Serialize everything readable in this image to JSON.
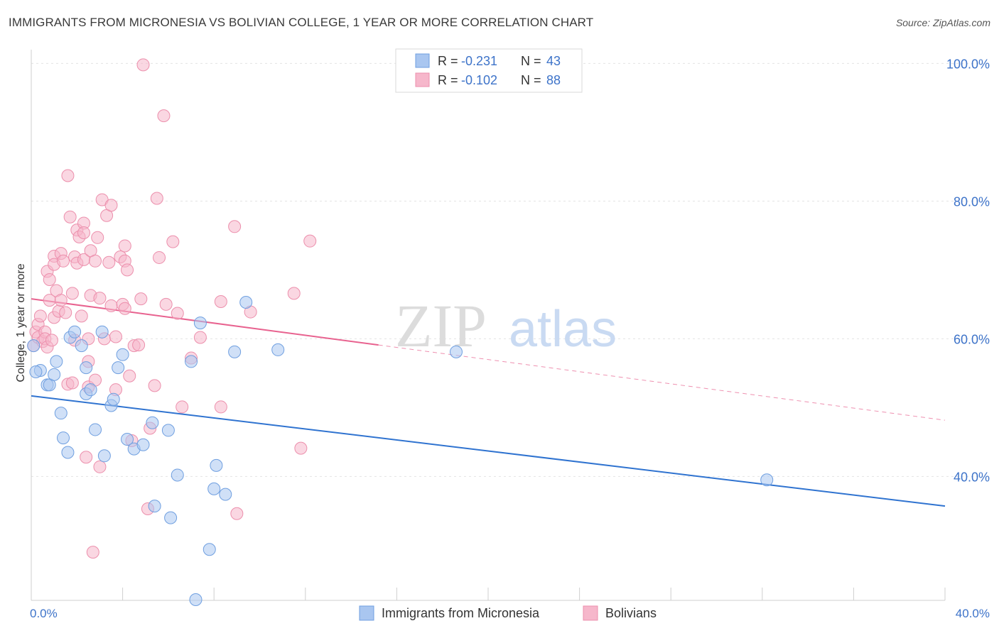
{
  "header": {
    "title": "IMMIGRANTS FROM MICRONESIA VS BOLIVIAN COLLEGE, 1 YEAR OR MORE CORRELATION CHART",
    "source": "Source: ZipAtlas.com"
  },
  "watermark": {
    "zip": "ZIP",
    "atlas": "atlas"
  },
  "legend_stats": [
    {
      "r_label": "R = ",
      "r_value": "-0.231",
      "n_label": "N = ",
      "n_value": "43",
      "color": "#a9c6f0"
    },
    {
      "r_label": "R = ",
      "r_value": "-0.102",
      "n_label": "N = ",
      "n_value": "88",
      "color": "#f6b7cb"
    }
  ],
  "colors": {
    "blue_fill": "#a9c6f0",
    "blue_stroke": "#6f9fe0",
    "blue_line": "#2f73d0",
    "pink_fill": "#f6b7cb",
    "pink_stroke": "#ec8fac",
    "pink_line": "#e8628f",
    "axis_text": "#3d73c9",
    "grid": "#e3e3e3"
  },
  "chart_data": {
    "type": "scatter",
    "title": "IMMIGRANTS FROM MICRONESIA VS BOLIVIAN COLLEGE, 1 YEAR OR MORE CORRELATION CHART",
    "xlabel": "",
    "ylabel": "College, 1 year or more",
    "xlim": [
      0,
      40
    ],
    "ylim": [
      22,
      102
    ],
    "x_tick_labels": [
      "0.0%",
      "40.0%"
    ],
    "y_tick_labels": [
      "40.0%",
      "60.0%",
      "80.0%",
      "100.0%"
    ],
    "y_ticks": [
      40,
      60,
      80,
      100
    ],
    "grid": true,
    "legend_position": "bottom",
    "series": [
      {
        "name": "Immigrants from Micronesia",
        "color": "#a9c6f0",
        "trend": {
          "x": [
            0,
            40
          ],
          "y": [
            51.7,
            35.7
          ],
          "dashed_x": []
        },
        "points": [
          [
            0.1,
            59.0
          ],
          [
            0.4,
            55.4
          ],
          [
            0.7,
            53.3
          ],
          [
            0.8,
            53.3
          ],
          [
            1.0,
            54.8
          ],
          [
            1.1,
            56.7
          ],
          [
            1.3,
            49.2
          ],
          [
            1.4,
            45.6
          ],
          [
            1.6,
            43.5
          ],
          [
            1.7,
            60.2
          ],
          [
            1.9,
            61.0
          ],
          [
            2.2,
            59.0
          ],
          [
            2.4,
            55.8
          ],
          [
            2.4,
            52.0
          ],
          [
            2.6,
            52.6
          ],
          [
            2.8,
            46.8
          ],
          [
            3.1,
            61.0
          ],
          [
            3.2,
            43.0
          ],
          [
            3.5,
            50.3
          ],
          [
            3.6,
            51.2
          ],
          [
            3.8,
            55.8
          ],
          [
            4.0,
            57.7
          ],
          [
            4.2,
            45.4
          ],
          [
            4.5,
            44.0
          ],
          [
            4.9,
            44.6
          ],
          [
            5.3,
            47.8
          ],
          [
            5.4,
            35.7
          ],
          [
            6.0,
            46.7
          ],
          [
            6.1,
            34.0
          ],
          [
            6.4,
            40.2
          ],
          [
            7.0,
            56.7
          ],
          [
            7.4,
            62.3
          ],
          [
            7.8,
            29.4
          ],
          [
            8.0,
            38.2
          ],
          [
            8.1,
            41.6
          ],
          [
            8.5,
            37.4
          ],
          [
            8.9,
            58.1
          ],
          [
            9.4,
            65.3
          ],
          [
            10.8,
            58.4
          ],
          [
            18.6,
            58.1
          ],
          [
            32.2,
            39.5
          ],
          [
            7.2,
            22.1
          ],
          [
            0.2,
            55.2
          ]
        ]
      },
      {
        "name": "Bolivians",
        "color": "#f6b7cb",
        "trend": {
          "x": [
            0,
            15.2
          ],
          "y": [
            65.8,
            59.1
          ],
          "dashed_x": [
            15.2,
            40
          ]
        },
        "points": [
          [
            0.1,
            59.0
          ],
          [
            0.2,
            61.0
          ],
          [
            0.3,
            60.2
          ],
          [
            0.3,
            62.1
          ],
          [
            0.4,
            63.3
          ],
          [
            0.5,
            59.6
          ],
          [
            0.6,
            61.0
          ],
          [
            0.6,
            60.0
          ],
          [
            0.7,
            58.8
          ],
          [
            0.7,
            69.8
          ],
          [
            0.8,
            68.6
          ],
          [
            0.8,
            65.6
          ],
          [
            0.9,
            59.8
          ],
          [
            1.0,
            72.0
          ],
          [
            1.0,
            70.8
          ],
          [
            1.0,
            63.1
          ],
          [
            1.1,
            67.0
          ],
          [
            1.2,
            64.0
          ],
          [
            1.3,
            72.4
          ],
          [
            1.3,
            65.6
          ],
          [
            1.4,
            71.3
          ],
          [
            1.5,
            63.8
          ],
          [
            1.6,
            53.4
          ],
          [
            1.6,
            83.7
          ],
          [
            1.7,
            77.7
          ],
          [
            1.8,
            66.6
          ],
          [
            1.8,
            53.6
          ],
          [
            1.9,
            59.8
          ],
          [
            1.9,
            71.9
          ],
          [
            2.0,
            75.8
          ],
          [
            2.0,
            71.0
          ],
          [
            2.1,
            74.8
          ],
          [
            2.2,
            63.3
          ],
          [
            2.3,
            71.5
          ],
          [
            2.3,
            76.8
          ],
          [
            2.3,
            75.4
          ],
          [
            2.5,
            60.0
          ],
          [
            2.5,
            56.7
          ],
          [
            2.5,
            53.0
          ],
          [
            2.6,
            66.3
          ],
          [
            2.6,
            72.8
          ],
          [
            2.8,
            71.3
          ],
          [
            2.8,
            54.0
          ],
          [
            2.9,
            74.7
          ],
          [
            3.0,
            65.9
          ],
          [
            3.0,
            41.4
          ],
          [
            3.1,
            80.2
          ],
          [
            3.2,
            60.0
          ],
          [
            3.3,
            77.9
          ],
          [
            3.4,
            71.1
          ],
          [
            3.5,
            79.4
          ],
          [
            3.5,
            64.8
          ],
          [
            3.7,
            60.3
          ],
          [
            3.7,
            52.6
          ],
          [
            3.9,
            71.9
          ],
          [
            4.0,
            65.0
          ],
          [
            4.1,
            73.5
          ],
          [
            4.1,
            64.4
          ],
          [
            4.1,
            71.3
          ],
          [
            4.2,
            70.0
          ],
          [
            4.3,
            54.6
          ],
          [
            4.4,
            45.2
          ],
          [
            4.5,
            59.0
          ],
          [
            4.7,
            59.1
          ],
          [
            4.8,
            65.8
          ],
          [
            4.9,
            99.8
          ],
          [
            5.1,
            35.3
          ],
          [
            5.2,
            47.0
          ],
          [
            5.4,
            53.2
          ],
          [
            5.5,
            80.4
          ],
          [
            5.6,
            71.8
          ],
          [
            5.8,
            92.4
          ],
          [
            5.9,
            65.0
          ],
          [
            6.2,
            74.1
          ],
          [
            6.4,
            63.7
          ],
          [
            6.6,
            50.1
          ],
          [
            7.0,
            57.2
          ],
          [
            7.4,
            60.2
          ],
          [
            8.3,
            65.4
          ],
          [
            8.3,
            50.1
          ],
          [
            8.9,
            76.3
          ],
          [
            9.0,
            34.6
          ],
          [
            9.6,
            63.9
          ],
          [
            11.5,
            66.6
          ],
          [
            11.8,
            44.1
          ],
          [
            12.2,
            74.2
          ],
          [
            2.7,
            29.0
          ],
          [
            2.4,
            42.8
          ]
        ]
      }
    ]
  },
  "bottom_legend": [
    {
      "label": "Immigrants from Micronesia",
      "color": "#a9c6f0"
    },
    {
      "label": "Bolivians",
      "color": "#f6b7cb"
    }
  ]
}
